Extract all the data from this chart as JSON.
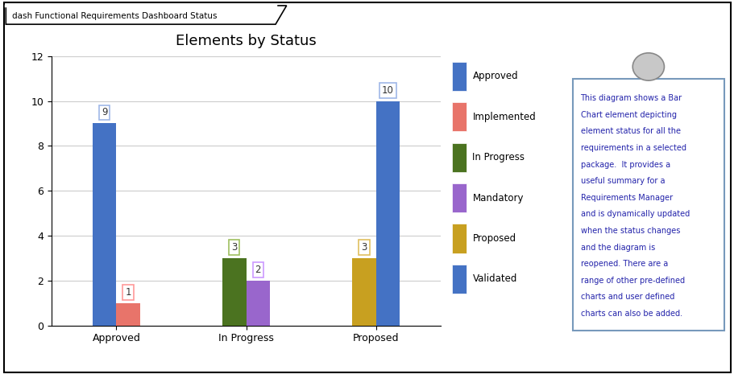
{
  "title": "Elements by Status",
  "header": "dash Functional Requirements Dashboard Status",
  "bar_groups": [
    {
      "label": "Approved",
      "bars": [
        {
          "name": "Approved",
          "value": 9,
          "color": "#4472C4"
        },
        {
          "name": "Implemented",
          "value": 1,
          "color": "#E8746A"
        }
      ]
    },
    {
      "label": "In Progress",
      "bars": [
        {
          "name": "In Progress",
          "value": 3,
          "color": "#4B7320"
        },
        {
          "name": "Mandatory",
          "value": 2,
          "color": "#9966CC"
        }
      ]
    },
    {
      "label": "Proposed",
      "bars": [
        {
          "name": "Proposed",
          "value": 3,
          "color": "#C8A020"
        },
        {
          "name": "Validated",
          "value": 10,
          "color": "#4472C4"
        }
      ]
    }
  ],
  "legend_entries": [
    {
      "label": "Approved",
      "color": "#4472C4"
    },
    {
      "label": "Implemented",
      "color": "#E8746A"
    },
    {
      "label": "In Progress",
      "color": "#4B7320"
    },
    {
      "label": "Mandatory",
      "color": "#9966CC"
    },
    {
      "label": "Proposed",
      "color": "#C8A020"
    },
    {
      "label": "Validated",
      "color": "#4472C4"
    }
  ],
  "ylim": [
    0,
    12
  ],
  "yticks": [
    0,
    2,
    4,
    6,
    8,
    10,
    12
  ],
  "note_lines": [
    "This diagram shows a Bar",
    "Chart element depicting",
    "element status for all the",
    "requirements in a selected",
    "package.  It provides a",
    "useful summary for a",
    "Requirements Manager",
    "and is dynamically updated",
    "when the status changes",
    "and the diagram is",
    "reopened. There are a",
    "range of other pre-defined",
    "charts and user defined",
    "charts can also be added."
  ],
  "bg_color": "#FFFFFF",
  "grid_color": "#CCCCCC",
  "label_box_colors": {
    "Approved": "#A0B8E8",
    "Implemented": "#FF9999",
    "In Progress": "#A0C060",
    "Mandatory": "#CC99FF",
    "Proposed": "#E0C060",
    "Validated": "#A0B8E8"
  },
  "bar_width": 0.55,
  "group_centers": [
    1.5,
    4.5,
    7.5
  ]
}
